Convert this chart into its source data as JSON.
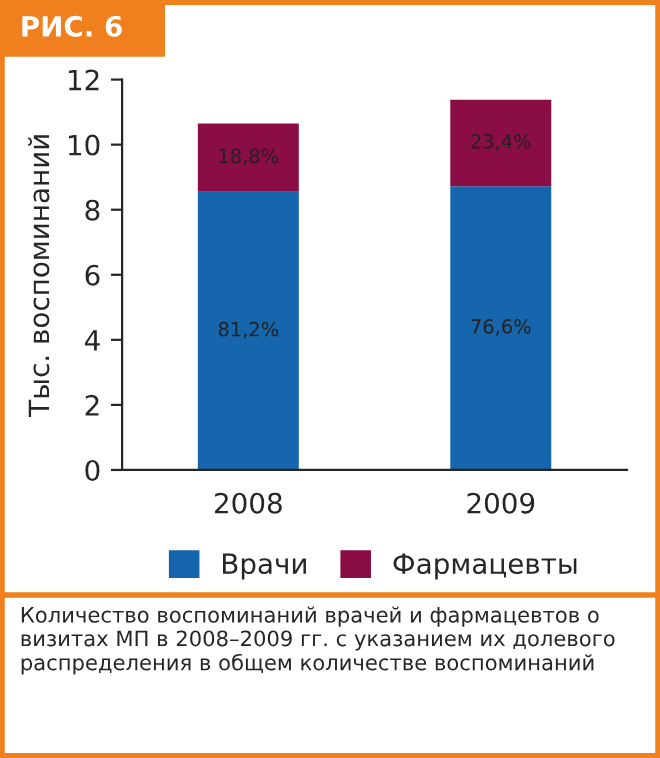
{
  "chart_data": {
    "type": "bar",
    "title": "РИС. 6",
    "ylabel": "Тыс. воспоминаний",
    "categories": [
      "2008",
      "2009"
    ],
    "stacked": true,
    "series": [
      {
        "name": "Врачи",
        "color": "#1566ad",
        "values": [
          8.55,
          8.72
        ]
      },
      {
        "name": "Фармацевты",
        "color": "#8b0d45",
        "values": [
          2.1,
          2.66
        ]
      }
    ],
    "ylim": [
      0,
      12
    ],
    "yticks": [
      0,
      2,
      4,
      6,
      8,
      10,
      12
    ],
    "grid": false,
    "legend": "bottom",
    "annotations": [
      "81,2%",
      "76,6%",
      "18,8%",
      "23,4%",
      "Количество воспоминаний врачей и фармацевтов о визитах МП в 2008–2009 гг. с указанием их долевого распределения в общем количестве воспоминаний"
    ]
  }
}
